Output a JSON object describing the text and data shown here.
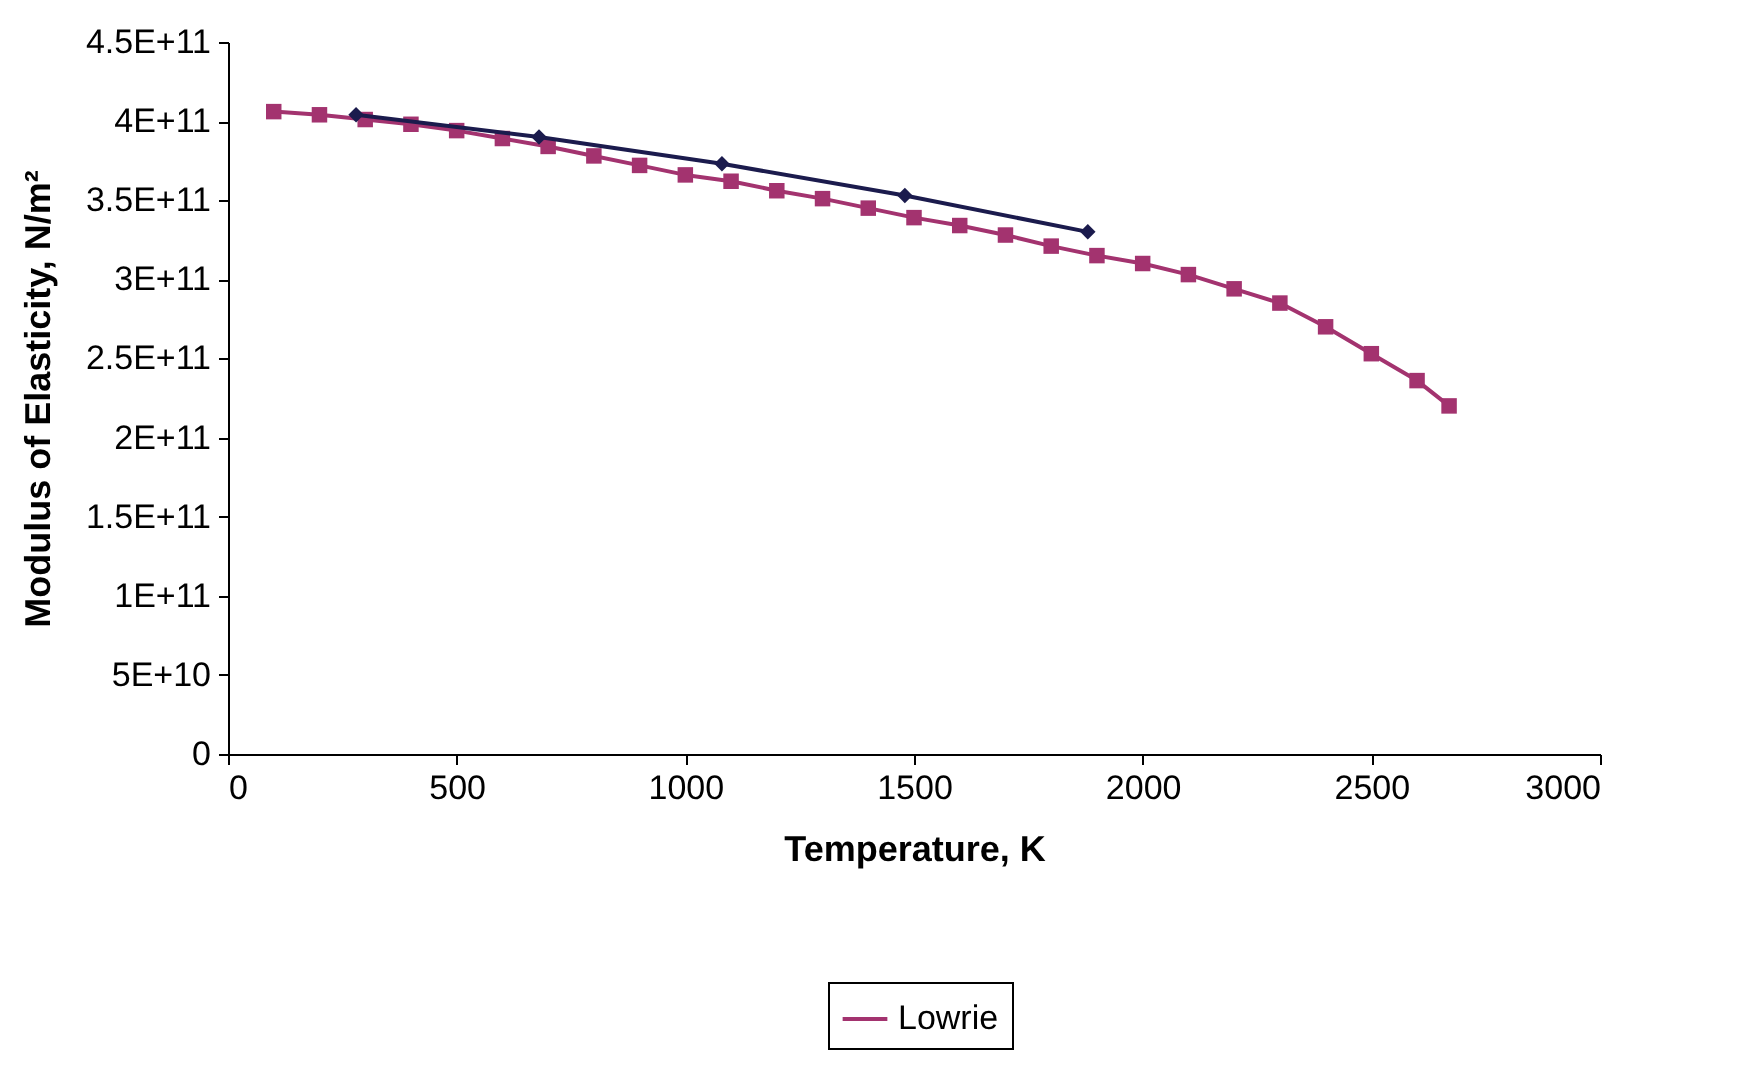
{
  "chart_data": {
    "type": "line",
    "xlabel": "Temperature, K",
    "ylabel": "Modulus of Elasticity, N/m²",
    "xlim": [
      0,
      3000
    ],
    "xticks": [
      0,
      500,
      1000,
      1500,
      2000,
      2500,
      3000
    ],
    "ylim": [
      0,
      450000000000
    ],
    "yticks": [
      {
        "value": 0,
        "label": "0"
      },
      {
        "value": 50000000000,
        "label": "5E+10"
      },
      {
        "value": 100000000000,
        "label": "1E+11"
      },
      {
        "value": 150000000000,
        "label": "1.5E+11"
      },
      {
        "value": 200000000000,
        "label": "2E+11"
      },
      {
        "value": 250000000000,
        "label": "2.5E+11"
      },
      {
        "value": 300000000000,
        "label": "3E+11"
      },
      {
        "value": 350000000000,
        "label": "3.5E+11"
      },
      {
        "value": 400000000000,
        "label": "4E+11"
      },
      {
        "value": 450000000000,
        "label": "4.5E+11"
      }
    ],
    "grid": false,
    "legend": "bottom",
    "line_style": "solid",
    "series": [
      {
        "name": "Lowrie",
        "color": "#a3336f",
        "marker": "square",
        "x": [
          100,
          200,
          300,
          400,
          500,
          600,
          700,
          800,
          900,
          1000,
          1100,
          1200,
          1300,
          1400,
          1500,
          1600,
          1700,
          1800,
          1900,
          2000,
          2100,
          2200,
          2300,
          2400,
          2500,
          2600,
          2670
        ],
        "values": [
          406000000000,
          404000000000,
          401000000000,
          398000000000,
          394000000000,
          389000000000,
          384000000000,
          378000000000,
          372000000000,
          366000000000,
          362000000000,
          356000000000,
          351000000000,
          345000000000,
          339000000000,
          334000000000,
          328000000000,
          321000000000,
          315000000000,
          310000000000,
          303000000000,
          294000000000,
          285000000000,
          270000000000,
          253000000000,
          236000000000,
          220000000000
        ]
      },
      {
        "color": "#1b1b4d",
        "marker": "diamond",
        "x": [
          280,
          680,
          1080,
          1480,
          1880
        ],
        "values": [
          404000000000,
          390000000000,
          373000000000,
          353000000000,
          330000000000
        ]
      }
    ]
  }
}
